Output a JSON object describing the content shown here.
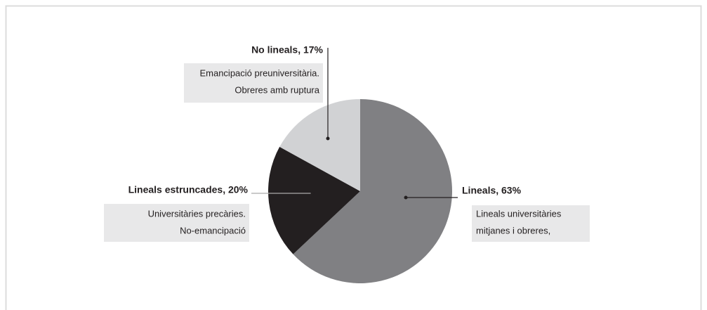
{
  "chart_data": {
    "type": "pie",
    "labels": [
      "Lineals, 63%",
      "Lineals estruncades, 20%",
      "No lineals, 17%"
    ],
    "values": [
      63,
      20,
      17
    ],
    "colors": [
      "#808083",
      "#231f20",
      "#d1d2d4"
    ],
    "descriptions": [
      [
        "Lineals universitàries",
        "mitjanes i obreres,"
      ],
      [
        "Universitàries precàries.",
        "No-emancipació"
      ],
      [
        "Emancipació preuniversitària.",
        "Obreres amb ruptura"
      ]
    ]
  }
}
